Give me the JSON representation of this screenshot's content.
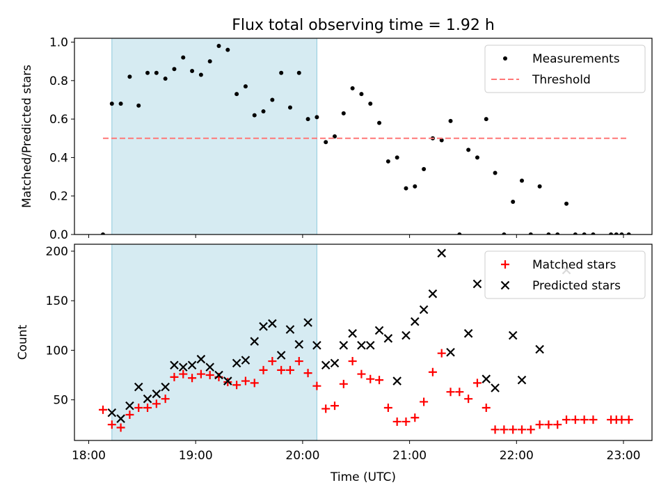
{
  "chart_data": {
    "title": "Flux total observing time = 1.92 h",
    "xlabel": "Time (UTC)",
    "x_ticks": [
      "18:00",
      "19:00",
      "20:00",
      "21:00",
      "22:00",
      "23:00"
    ],
    "xlim": [
      "17:52",
      "23:16"
    ],
    "shaded_span": [
      "18:13",
      "20:08"
    ],
    "panels": [
      {
        "type": "scatter",
        "ylabel": "Matched/Predicted stars",
        "ylim": [
          0,
          1.02
        ],
        "y_ticks": [
          "0.0",
          "0.2",
          "0.4",
          "0.6",
          "0.8",
          "1.0"
        ],
        "legend_position": "upper right",
        "series": [
          {
            "name": "Measurements",
            "color": "#000000",
            "marker": "dot",
            "points": [
              [
                "18:08",
                0.0
              ],
              [
                "18:13",
                0.68
              ],
              [
                "18:18",
                0.68
              ],
              [
                "18:23",
                0.82
              ],
              [
                "18:28",
                0.67
              ],
              [
                "18:33",
                0.84
              ],
              [
                "18:38",
                0.84
              ],
              [
                "18:43",
                0.81
              ],
              [
                "18:48",
                0.86
              ],
              [
                "18:53",
                0.92
              ],
              [
                "18:58",
                0.85
              ],
              [
                "19:03",
                0.83
              ],
              [
                "19:08",
                0.9
              ],
              [
                "19:13",
                0.98
              ],
              [
                "19:18",
                0.96
              ],
              [
                "19:23",
                0.73
              ],
              [
                "19:28",
                0.77
              ],
              [
                "19:33",
                0.62
              ],
              [
                "19:38",
                0.64
              ],
              [
                "19:43",
                0.7
              ],
              [
                "19:48",
                0.84
              ],
              [
                "19:53",
                0.66
              ],
              [
                "19:58",
                0.84
              ],
              [
                "20:03",
                0.6
              ],
              [
                "20:08",
                0.61
              ],
              [
                "20:13",
                0.48
              ],
              [
                "20:18",
                0.51
              ],
              [
                "20:23",
                0.63
              ],
              [
                "20:28",
                0.76
              ],
              [
                "20:33",
                0.73
              ],
              [
                "20:38",
                0.68
              ],
              [
                "20:43",
                0.58
              ],
              [
                "20:48",
                0.38
              ],
              [
                "20:53",
                0.4
              ],
              [
                "20:58",
                0.24
              ],
              [
                "21:03",
                0.25
              ],
              [
                "21:08",
                0.34
              ],
              [
                "21:13",
                0.5
              ],
              [
                "21:18",
                0.49
              ],
              [
                "21:23",
                0.59
              ],
              [
                "21:28",
                0.0
              ],
              [
                "21:33",
                0.44
              ],
              [
                "21:38",
                0.4
              ],
              [
                "21:43",
                0.6
              ],
              [
                "21:48",
                0.32
              ],
              [
                "21:53",
                0.0
              ],
              [
                "21:58",
                0.17
              ],
              [
                "22:03",
                0.28
              ],
              [
                "22:08",
                0.0
              ],
              [
                "22:13",
                0.25
              ],
              [
                "22:18",
                0.0
              ],
              [
                "22:23",
                0.0
              ],
              [
                "22:28",
                0.16
              ],
              [
                "22:33",
                0.0
              ],
              [
                "22:38",
                0.0
              ],
              [
                "22:43",
                0.0
              ],
              [
                "22:53",
                0.0
              ],
              [
                "22:56",
                0.0
              ],
              [
                "22:59",
                0.0
              ],
              [
                "23:03",
                0.0
              ]
            ]
          },
          {
            "name": "Threshold",
            "color": "#ff7777",
            "style": "dashed",
            "points": [
              [
                "18:08",
                0.5
              ],
              [
                "23:03",
                0.5
              ]
            ]
          }
        ]
      },
      {
        "type": "scatter",
        "ylabel": "Count",
        "ylim": [
          9,
          207
        ],
        "y_ticks": [
          "50",
          "100",
          "150",
          "200"
        ],
        "legend_position": "upper right",
        "series": [
          {
            "name": "Matched stars",
            "color": "#ff0000",
            "marker": "plus",
            "points": [
              [
                "18:08",
                40
              ],
              [
                "18:13",
                25
              ],
              [
                "18:18",
                22
              ],
              [
                "18:23",
                35
              ],
              [
                "18:28",
                42
              ],
              [
                "18:33",
                42
              ],
              [
                "18:38",
                46
              ],
              [
                "18:43",
                51
              ],
              [
                "18:48",
                73
              ],
              [
                "18:53",
                76
              ],
              [
                "18:58",
                72
              ],
              [
                "19:03",
                76
              ],
              [
                "19:08",
                75
              ],
              [
                "19:13",
                73
              ],
              [
                "19:18",
                68
              ],
              [
                "19:23",
                65
              ],
              [
                "19:28",
                69
              ],
              [
                "19:33",
                67
              ],
              [
                "19:38",
                80
              ],
              [
                "19:43",
                89
              ],
              [
                "19:48",
                80
              ],
              [
                "19:53",
                80
              ],
              [
                "19:58",
                89
              ],
              [
                "20:03",
                77
              ],
              [
                "20:08",
                64
              ],
              [
                "20:13",
                41
              ],
              [
                "20:18",
                44
              ],
              [
                "20:23",
                66
              ],
              [
                "20:28",
                89
              ],
              [
                "20:33",
                76
              ],
              [
                "20:38",
                71
              ],
              [
                "20:43",
                70
              ],
              [
                "20:48",
                42
              ],
              [
                "20:53",
                28
              ],
              [
                "20:58",
                28
              ],
              [
                "21:03",
                32
              ],
              [
                "21:08",
                48
              ],
              [
                "21:13",
                78
              ],
              [
                "21:18",
                97
              ],
              [
                "21:23",
                58
              ],
              [
                "21:28",
                58
              ],
              [
                "21:33",
                51
              ],
              [
                "21:38",
                67
              ],
              [
                "21:43",
                42
              ],
              [
                "21:48",
                20
              ],
              [
                "21:53",
                20
              ],
              [
                "21:58",
                20
              ],
              [
                "22:03",
                20
              ],
              [
                "22:08",
                20
              ],
              [
                "22:13",
                25
              ],
              [
                "22:18",
                25
              ],
              [
                "22:23",
                25
              ],
              [
                "22:28",
                30
              ],
              [
                "22:33",
                30
              ],
              [
                "22:38",
                30
              ],
              [
                "22:43",
                30
              ],
              [
                "22:53",
                30
              ],
              [
                "22:56",
                30
              ],
              [
                "22:59",
                30
              ],
              [
                "23:03",
                30
              ]
            ]
          },
          {
            "name": "Predicted stars",
            "color": "#000000",
            "marker": "x",
            "points": [
              [
                "18:13",
                37
              ],
              [
                "18:18",
                31
              ],
              [
                "18:23",
                44
              ],
              [
                "18:28",
                63
              ],
              [
                "18:33",
                51
              ],
              [
                "18:38",
                56
              ],
              [
                "18:43",
                63
              ],
              [
                "18:48",
                85
              ],
              [
                "18:53",
                83
              ],
              [
                "18:58",
                85
              ],
              [
                "19:03",
                91
              ],
              [
                "19:08",
                83
              ],
              [
                "19:13",
                75
              ],
              [
                "19:18",
                69
              ],
              [
                "19:23",
                87
              ],
              [
                "19:28",
                90
              ],
              [
                "19:33",
                109
              ],
              [
                "19:38",
                124
              ],
              [
                "19:43",
                127
              ],
              [
                "19:48",
                95
              ],
              [
                "19:53",
                121
              ],
              [
                "19:58",
                106
              ],
              [
                "20:03",
                128
              ],
              [
                "20:08",
                105
              ],
              [
                "20:13",
                85
              ],
              [
                "20:18",
                87
              ],
              [
                "20:23",
                105
              ],
              [
                "20:28",
                117
              ],
              [
                "20:33",
                105
              ],
              [
                "20:38",
                105
              ],
              [
                "20:43",
                120
              ],
              [
                "20:48",
                112
              ],
              [
                "20:53",
                69
              ],
              [
                "20:58",
                115
              ],
              [
                "21:03",
                129
              ],
              [
                "21:08",
                141
              ],
              [
                "21:13",
                157
              ],
              [
                "21:18",
                198
              ],
              [
                "21:23",
                98
              ],
              [
                "21:33",
                117
              ],
              [
                "21:38",
                167
              ],
              [
                "21:43",
                71
              ],
              [
                "21:48",
                62
              ],
              [
                "21:58",
                115
              ],
              [
                "22:03",
                70
              ],
              [
                "22:13",
                101
              ],
              [
                "22:28",
                181
              ]
            ]
          }
        ]
      }
    ]
  }
}
